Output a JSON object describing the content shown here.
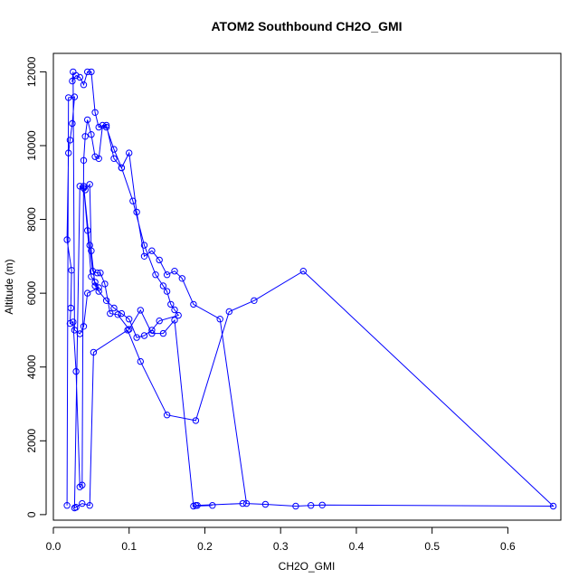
{
  "chart_data": {
    "type": "scatter",
    "title": "ATOM2 Southbound CH2O_GMI",
    "xlabel": "CH2O_GMI",
    "ylabel": "Altitude (m)",
    "xlim": [
      0.0,
      0.67
    ],
    "ylim": [
      -150,
      12500
    ],
    "x_ticks": [
      0.0,
      0.1,
      0.2,
      0.3,
      0.4,
      0.5,
      0.6
    ],
    "x_tick_labels": [
      "0.0",
      "0.1",
      "0.2",
      "0.3",
      "0.4",
      "0.5",
      "0.6"
    ],
    "y_ticks": [
      0,
      2000,
      4000,
      6000,
      8000,
      10000,
      12000
    ],
    "y_tick_labels": [
      "0",
      "2000",
      "4000",
      "6000",
      "8000",
      "10000",
      "12000"
    ],
    "grid": false,
    "legend": "none",
    "color": "#0000ff",
    "marker": "open-circle",
    "connect_points": true,
    "x": [
      0.018,
      0.02,
      0.028,
      0.025,
      0.022,
      0.02,
      0.018,
      0.024,
      0.023,
      0.022,
      0.026,
      0.03,
      0.035,
      0.038,
      0.04,
      0.042,
      0.045,
      0.05,
      0.055,
      0.06,
      0.065,
      0.07,
      0.08,
      0.09,
      0.1,
      0.11,
      0.12,
      0.13,
      0.14,
      0.15,
      0.16,
      0.17,
      0.185,
      0.22,
      0.255,
      0.28,
      0.32,
      0.34,
      0.355,
      0.66,
      0.33,
      0.265,
      0.232,
      0.188,
      0.15,
      0.115,
      0.098,
      0.053,
      0.048,
      0.038,
      0.03,
      0.028,
      0.035,
      0.04,
      0.042,
      0.048,
      0.05,
      0.055,
      0.06,
      0.045,
      0.04,
      0.035,
      0.028,
      0.026,
      0.025,
      0.03,
      0.035,
      0.04,
      0.045,
      0.05,
      0.055,
      0.06,
      0.07,
      0.08,
      0.09,
      0.105,
      0.12,
      0.135,
      0.145,
      0.15,
      0.155,
      0.16,
      0.165,
      0.14,
      0.13,
      0.12,
      0.11,
      0.1,
      0.09,
      0.08,
      0.07,
      0.06,
      0.055,
      0.05,
      0.045,
      0.04,
      0.048,
      0.052,
      0.058,
      0.062,
      0.068,
      0.075,
      0.085,
      0.1,
      0.115,
      0.13,
      0.145,
      0.16,
      0.185,
      0.21,
      0.188,
      0.25,
      0.19
    ],
    "y": [
      250,
      11300,
      11320,
      10600,
      10150,
      9800,
      7450,
      6620,
      5600,
      5180,
      5220,
      3880,
      750,
      800,
      9600,
      10250,
      10700,
      10300,
      9700,
      9650,
      10550,
      10500,
      9900,
      9400,
      9800,
      8200,
      7000,
      7150,
      6900,
      6500,
      6600,
      6400,
      5700,
      5300,
      300,
      280,
      230,
      250,
      260,
      230,
      6600,
      5800,
      5500,
      2550,
      2700,
      4150,
      5000,
      4400,
      250,
      300,
      200,
      180,
      8900,
      8850,
      8800,
      8950,
      7150,
      6200,
      6150,
      6000,
      5100,
      4900,
      5000,
      12000,
      11750,
      11900,
      11850,
      11650,
      12000,
      12000,
      10900,
      10500,
      10550,
      9650,
      9400,
      8500,
      7300,
      6500,
      6200,
      6050,
      5700,
      5550,
      5400,
      5250,
      5000,
      4850,
      4800,
      5300,
      5450,
      5600,
      5800,
      6050,
      6300,
      6450,
      7700,
      8900,
      7300,
      6600,
      6550,
      6550,
      6250,
      5450,
      5420,
      5020,
      5540,
      4910,
      4910,
      5270,
      230,
      250,
      250,
      300,
      250
    ]
  }
}
